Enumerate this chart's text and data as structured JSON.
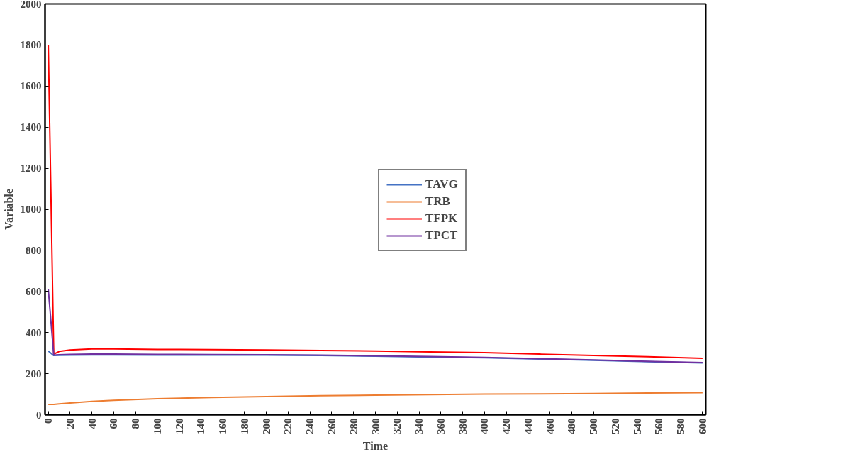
{
  "chart_data": {
    "type": "line",
    "xlabel": "Time",
    "ylabel": "Variable",
    "x": [
      0,
      5,
      10,
      20,
      40,
      60,
      100,
      150,
      200,
      250,
      300,
      350,
      400,
      450,
      500,
      550,
      600
    ],
    "series": [
      {
        "name": "TAVG",
        "color": "#4472c4",
        "values": [
          310,
          288,
          289,
          290,
          291,
          291,
          290,
          290,
          290,
          288,
          285,
          281,
          277,
          271,
          265,
          258,
          252
        ]
      },
      {
        "name": "TRB",
        "color": "#ed7d31",
        "values": [
          50,
          50,
          53,
          57,
          65,
          70,
          78,
          84,
          88,
          92,
          95,
          98,
          100,
          101,
          103,
          105,
          107
        ]
      },
      {
        "name": "TFPK",
        "color": "#ff0000",
        "values": [
          1800,
          295,
          308,
          315,
          320,
          320,
          318,
          317,
          315,
          313,
          310,
          306,
          302,
          295,
          288,
          282,
          275
        ]
      },
      {
        "name": "TPCT",
        "color": "#7030a0",
        "values": [
          610,
          290,
          292,
          294,
          295,
          295,
          294,
          293,
          292,
          290,
          287,
          283,
          279,
          273,
          267,
          260,
          254
        ]
      }
    ],
    "xlim": [
      -3,
      603
    ],
    "ylim": [
      0,
      2000
    ],
    "xticks": [
      0,
      20,
      40,
      60,
      80,
      100,
      120,
      140,
      160,
      180,
      200,
      220,
      240,
      260,
      280,
      300,
      320,
      340,
      360,
      380,
      400,
      420,
      440,
      460,
      480,
      500,
      520,
      540,
      560,
      580,
      600
    ],
    "yticks": [
      0,
      200,
      400,
      600,
      800,
      1000,
      1200,
      1400,
      1600,
      1800,
      2000
    ],
    "grid": false,
    "legend": "center",
    "line_style": "solid",
    "marker": "none"
  }
}
